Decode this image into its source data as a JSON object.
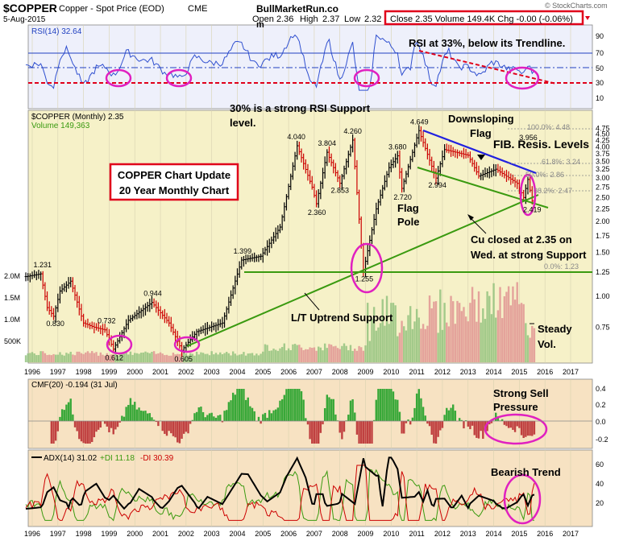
{
  "header": {
    "symbol": "$COPPER",
    "name": "Copper - Spot Price (EOD)",
    "exchange": "CME",
    "date": "5-Aug-2015",
    "site": "BullMarketRun.co",
    "site2": "m",
    "open_label": "Open",
    "open": "2.36",
    "high_label": "High",
    "high": "2.37",
    "low_label": "Low",
    "low": "2.32",
    "close_box": "Close 2.35  Volume 149.4K  Chg -0.00 (-0.06%)",
    "brand": "© StockCharts.com"
  },
  "colors": {
    "rsi_bg": "#eef0fb",
    "price_bg": "#f6f1c8",
    "indicator_bg": "#f7e2c2",
    "up": "#000000",
    "down": "#cc0000",
    "trend_green": "#3a9a10",
    "downslope_blue": "#2020e0",
    "red_box": "#e0001a",
    "circle": "#e020c0"
  },
  "rsi_panel": {
    "label": "RSI(14) 32.64",
    "ticks": [
      "90",
      "70",
      "50",
      "30",
      "10"
    ],
    "note": "RSI at 33%, below its Trendline.",
    "support_note_1": "30% is a strong RSI Support",
    "support_note_2": "level."
  },
  "price_panel": {
    "label": "$COPPER (Monthly) 2.35",
    "volume_label": "Volume 149,363",
    "title_box_1": "COPPER Chart Update",
    "title_box_2": "20 Year Monthly Chart",
    "y_ticks": [
      "4.75",
      "4.50",
      "4.25",
      "4.00",
      "3.75",
      "3.50",
      "3.25",
      "3.00",
      "2.75",
      "2.50",
      "2.25",
      "2.00",
      "1.75",
      "1.50",
      "1.25",
      "1.00",
      "0.75"
    ],
    "vol_ticks": [
      "2.0M",
      "1.5M",
      "1.0M",
      "500K"
    ],
    "fib_title": "FIB. Resis. Levels",
    "fib_levels": [
      "100.0%: 4.48",
      "61.8%: 3.24",
      "50.0%: 2.86",
      "38.2%: 2.47",
      "0.0%: 1.23"
    ],
    "ann_downsloping_1": "Downsloping",
    "ann_downsloping_2": "Flag",
    "ann_flag_1": "Flag",
    "ann_flag_2": "Pole",
    "ann_cu_1": "Cu closed at 2.35 on",
    "ann_cu_2": "Wed. at strong Support",
    "ann_uptrend": "L/T Uptrend Support",
    "ann_vol_1": "Steady",
    "ann_vol_2": "Vol."
  },
  "chart_data": {
    "type": "line",
    "title": "$COPPER (Monthly)",
    "x_axis_years": [
      "1996",
      "1997",
      "1998",
      "1999",
      "2000",
      "2001",
      "2002",
      "2003",
      "2004",
      "2005",
      "2006",
      "2007",
      "2008",
      "2009",
      "2010",
      "2011",
      "2012",
      "2013",
      "2014",
      "2015",
      "2016",
      "2017"
    ],
    "scale": "log",
    "ylim": [
      0.55,
      4.8
    ],
    "price_points": [
      {
        "date": "1995-10",
        "value": 1.2
      },
      {
        "date": "1996-05",
        "value": 1.231
      },
      {
        "date": "1996-08",
        "value": 0.9
      },
      {
        "date": "1996-11",
        "value": 0.83
      },
      {
        "date": "1997-02",
        "value": 1.05
      },
      {
        "date": "1997-07",
        "value": 1.15
      },
      {
        "date": "1998-01",
        "value": 0.78
      },
      {
        "date": "1998-06",
        "value": 0.75
      },
      {
        "date": "1998-11",
        "value": 0.732
      },
      {
        "date": "1999-03",
        "value": 0.612
      },
      {
        "date": "1999-10",
        "value": 0.8
      },
      {
        "date": "2000-09",
        "value": 0.944
      },
      {
        "date": "2001-05",
        "value": 0.78
      },
      {
        "date": "2001-11",
        "value": 0.605
      },
      {
        "date": "2002-06",
        "value": 0.72
      },
      {
        "date": "2003-06",
        "value": 0.78
      },
      {
        "date": "2004-03",
        "value": 1.399
      },
      {
        "date": "2004-12",
        "value": 1.45
      },
      {
        "date": "2005-09",
        "value": 1.9
      },
      {
        "date": "2006-05",
        "value": 4.04
      },
      {
        "date": "2006-12",
        "value": 2.75
      },
      {
        "date": "2007-02",
        "value": 2.36
      },
      {
        "date": "2007-07",
        "value": 3.804
      },
      {
        "date": "2007-12",
        "value": 3.0
      },
      {
        "date": "2008-01",
        "value": 2.853
      },
      {
        "date": "2008-07",
        "value": 4.26
      },
      {
        "date": "2008-12",
        "value": 1.255
      },
      {
        "date": "2009-06",
        "value": 2.25
      },
      {
        "date": "2009-12",
        "value": 3.3
      },
      {
        "date": "2010-04",
        "value": 3.68
      },
      {
        "date": "2010-06",
        "value": 2.72
      },
      {
        "date": "2011-02",
        "value": 4.649
      },
      {
        "date": "2011-10",
        "value": 2.994
      },
      {
        "date": "2012-02",
        "value": 3.9
      },
      {
        "date": "2013-01",
        "value": 3.7
      },
      {
        "date": "2013-06",
        "value": 3.05
      },
      {
        "date": "2014-02",
        "value": 3.25
      },
      {
        "date": "2014-12",
        "value": 2.85
      },
      {
        "date": "2015-03",
        "value": 2.5
      },
      {
        "date": "2015-05",
        "value": 2.956
      },
      {
        "date": "2015-07",
        "value": 2.419
      },
      {
        "date": "2015-08",
        "value": 2.35
      }
    ],
    "point_labels": [
      "1.231",
      "0.830",
      "0.732",
      "0.612",
      "0.944",
      "0.605",
      "1.399",
      "4.040",
      "2.360",
      "3.804",
      "2.853",
      "4.260",
      "1.255",
      "3.680",
      "2.720",
      "4.649",
      "2.994",
      "3.956",
      "2.419"
    ]
  },
  "cmf_panel": {
    "label": "CMF(20) -0.194 (31 Jul)",
    "ticks": [
      "0.4",
      "0.2",
      "0.0",
      "-0.2"
    ],
    "note_1": "Strong Sell",
    "note_2": "Pressure"
  },
  "adx_panel": {
    "label_adx": "ADX(14) 31.02",
    "label_pdi": "+DI 11.18",
    "label_mdi": "-DI 30.39",
    "ticks": [
      "60",
      "40",
      "20"
    ],
    "note": "Bearish Trend"
  }
}
